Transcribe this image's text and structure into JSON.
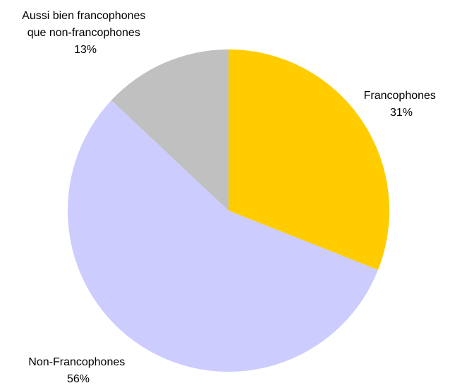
{
  "chart_data": {
    "type": "pie",
    "title": "",
    "slices": [
      {
        "label": "Francophones",
        "value": 31,
        "value_label": "31%",
        "color": "#FFCC00"
      },
      {
        "label": "Non-Francophones",
        "value": 56,
        "value_label": "56%",
        "color": "#CCCCFF"
      },
      {
        "label_lines": [
          "Aussi bien francophones",
          "que non-francophones"
        ],
        "value": 13,
        "value_label": "13%",
        "color": "#C0C0C0"
      }
    ],
    "start_angle": "12 o'clock",
    "direction": "clockwise",
    "legend": "none"
  }
}
